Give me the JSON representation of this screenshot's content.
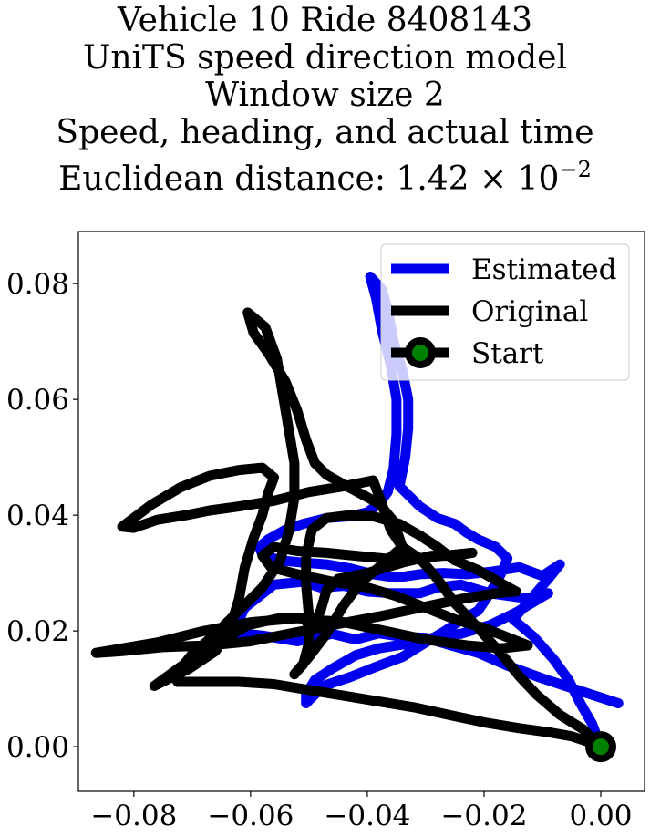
{
  "chart_data": {
    "type": "line",
    "title_lines": [
      "Vehicle 10 Ride 8408143",
      "UniTS speed direction model",
      "Window size 2",
      "Speed, heading, and actual time"
    ],
    "title_last_prefix": "Euclidean distance: 1.42",
    "title_last_base": "10",
    "title_last_exp": "−2",
    "xlim": [
      -0.0895,
      0.0075
    ],
    "ylim": [
      -0.0077,
      0.089
    ],
    "xticks": [
      -0.08,
      -0.06,
      -0.04,
      -0.02,
      0.0
    ],
    "xtick_labels": [
      "−0.08",
      "−0.06",
      "−0.04",
      "−0.02",
      "0.00"
    ],
    "yticks": [
      0.0,
      0.02,
      0.04,
      0.06,
      0.08
    ],
    "ytick_labels": [
      "0.00",
      "0.02",
      "0.04",
      "0.06",
      "0.08"
    ],
    "grid": false,
    "legend_position": "top-right",
    "series": [
      {
        "name": "Estimated",
        "color": "#0000ee",
        "points": [
          [
            0.003,
            0.0075
          ],
          [
            -0.004,
            0.0098
          ],
          [
            -0.01,
            0.0118
          ],
          [
            -0.016,
            0.014
          ],
          [
            -0.021,
            0.0162
          ],
          [
            -0.026,
            0.0176
          ],
          [
            -0.03,
            0.0188
          ],
          [
            -0.034,
            0.019
          ],
          [
            -0.038,
            0.0196
          ],
          [
            -0.042,
            0.0185
          ],
          [
            -0.046,
            0.0195
          ],
          [
            -0.052,
            0.0182
          ],
          [
            -0.058,
            0.0192
          ],
          [
            -0.063,
            0.0197
          ],
          [
            -0.061,
            0.024
          ],
          [
            -0.056,
            0.028
          ],
          [
            -0.051,
            0.0285
          ],
          [
            -0.048,
            0.0275
          ],
          [
            -0.044,
            0.0278
          ],
          [
            -0.04,
            0.0268
          ],
          [
            -0.036,
            0.0265
          ],
          [
            -0.031,
            0.0265
          ],
          [
            -0.028,
            0.0275
          ],
          [
            -0.024,
            0.028
          ],
          [
            -0.019,
            0.0265
          ],
          [
            -0.014,
            0.0258
          ],
          [
            -0.011,
            0.0255
          ],
          [
            -0.009,
            0.0265
          ],
          [
            -0.0145,
            0.0232
          ],
          [
            -0.019,
            0.021
          ],
          [
            -0.024,
            0.0195
          ],
          [
            -0.028,
            0.019
          ],
          [
            -0.033,
            0.0178
          ],
          [
            -0.038,
            0.017
          ],
          [
            -0.042,
            0.0158
          ],
          [
            -0.046,
            0.0135
          ],
          [
            -0.049,
            0.0115
          ],
          [
            -0.0505,
            0.009
          ],
          [
            -0.0505,
            0.0075
          ],
          [
            -0.0475,
            0.0105
          ],
          [
            -0.043,
            0.012
          ],
          [
            -0.038,
            0.014
          ],
          [
            -0.034,
            0.0155
          ],
          [
            -0.03,
            0.018
          ],
          [
            -0.027,
            0.0198
          ],
          [
            -0.024,
            0.0218
          ],
          [
            -0.021,
            0.0235
          ],
          [
            -0.019,
            0.0265
          ],
          [
            -0.017,
            0.03
          ],
          [
            -0.016,
            0.0325
          ],
          [
            -0.018,
            0.0345
          ],
          [
            -0.021,
            0.0358
          ],
          [
            -0.023,
            0.037
          ],
          [
            -0.025,
            0.0385
          ],
          [
            -0.028,
            0.0395
          ],
          [
            -0.031,
            0.0415
          ],
          [
            -0.033,
            0.0435
          ],
          [
            -0.0345,
            0.045
          ],
          [
            -0.0335,
            0.05
          ],
          [
            -0.033,
            0.055
          ],
          [
            -0.033,
            0.06
          ],
          [
            -0.034,
            0.065
          ],
          [
            -0.0355,
            0.07
          ],
          [
            -0.0365,
            0.0755
          ],
          [
            -0.0375,
            0.079
          ],
          [
            -0.0395,
            0.0812
          ],
          [
            -0.0385,
            0.0775
          ],
          [
            -0.0375,
            0.072
          ],
          [
            -0.036,
            0.066
          ],
          [
            -0.035,
            0.06
          ],
          [
            -0.035,
            0.054
          ],
          [
            -0.0355,
            0.048
          ],
          [
            -0.0365,
            0.044
          ],
          [
            -0.038,
            0.042
          ],
          [
            -0.04,
            0.0405
          ],
          [
            -0.043,
            0.0398
          ],
          [
            -0.047,
            0.0395
          ],
          [
            -0.051,
            0.0385
          ],
          [
            -0.054,
            0.0375
          ],
          [
            -0.057,
            0.0358
          ],
          [
            -0.0585,
            0.0345
          ],
          [
            -0.058,
            0.0332
          ],
          [
            -0.055,
            0.0322
          ],
          [
            -0.051,
            0.0318
          ],
          [
            -0.047,
            0.0315
          ],
          [
            -0.043,
            0.0308
          ],
          [
            -0.039,
            0.0298
          ],
          [
            -0.035,
            0.0292
          ],
          [
            -0.031,
            0.0298
          ],
          [
            -0.027,
            0.03
          ],
          [
            -0.023,
            0.0298
          ],
          [
            -0.019,
            0.0302
          ],
          [
            -0.014,
            0.031
          ],
          [
            -0.01,
            0.0295
          ],
          [
            -0.007,
            0.0315
          ],
          [
            -0.009,
            0.029
          ],
          [
            -0.012,
            0.0255
          ],
          [
            -0.015,
            0.022
          ],
          [
            -0.0115,
            0.019
          ],
          [
            -0.008,
            0.015
          ],
          [
            -0.0055,
            0.0115
          ],
          [
            -0.0035,
            0.0075
          ],
          [
            -0.0015,
            0.004
          ],
          [
            0.0,
            0.0
          ]
        ]
      },
      {
        "name": "Original",
        "color": "#000000",
        "points": [
          [
            0.0,
            0.0
          ],
          [
            -0.003,
            0.003
          ],
          [
            -0.007,
            0.0055
          ],
          [
            -0.011,
            0.009
          ],
          [
            -0.014,
            0.0122
          ],
          [
            -0.017,
            0.016
          ],
          [
            -0.021,
            0.0205
          ],
          [
            -0.025,
            0.0248
          ],
          [
            -0.028,
            0.029
          ],
          [
            -0.031,
            0.0325
          ],
          [
            -0.034,
            0.0345
          ],
          [
            -0.036,
            0.0375
          ],
          [
            -0.0375,
            0.042
          ],
          [
            -0.039,
            0.046
          ],
          [
            -0.044,
            0.045
          ],
          [
            -0.05,
            0.044
          ],
          [
            -0.056,
            0.0425
          ],
          [
            -0.062,
            0.0415
          ],
          [
            -0.067,
            0.0408
          ],
          [
            -0.071,
            0.04
          ],
          [
            -0.076,
            0.0392
          ],
          [
            -0.08,
            0.0378
          ],
          [
            -0.082,
            0.038
          ],
          [
            -0.077,
            0.0418
          ],
          [
            -0.072,
            0.0448
          ],
          [
            -0.067,
            0.0468
          ],
          [
            -0.062,
            0.0478
          ],
          [
            -0.058,
            0.0482
          ],
          [
            -0.056,
            0.0465
          ],
          [
            -0.057,
            0.0438
          ],
          [
            -0.058,
            0.04
          ],
          [
            -0.0595,
            0.036
          ],
          [
            -0.061,
            0.031
          ],
          [
            -0.062,
            0.0255
          ],
          [
            -0.0635,
            0.0205
          ],
          [
            -0.066,
            0.0165
          ],
          [
            -0.0705,
            0.0135
          ],
          [
            -0.0765,
            0.0105
          ],
          [
            -0.072,
            0.0138
          ],
          [
            -0.0665,
            0.0175
          ],
          [
            -0.0605,
            0.021
          ],
          [
            -0.055,
            0.0222
          ],
          [
            -0.051,
            0.0222
          ],
          [
            -0.0495,
            0.0205
          ],
          [
            -0.048,
            0.0235
          ],
          [
            -0.047,
            0.027
          ],
          [
            -0.045,
            0.029
          ],
          [
            -0.04,
            0.03
          ],
          [
            -0.034,
            0.0318
          ],
          [
            -0.029,
            0.033
          ],
          [
            -0.025,
            0.033
          ],
          [
            -0.022,
            0.0335
          ],
          [
            -0.027,
            0.033
          ],
          [
            -0.032,
            0.0325
          ],
          [
            -0.037,
            0.0325
          ],
          [
            -0.042,
            0.033
          ],
          [
            -0.047,
            0.0335
          ],
          [
            -0.052,
            0.0338
          ],
          [
            -0.056,
            0.0345
          ],
          [
            -0.058,
            0.033
          ],
          [
            -0.0565,
            0.031
          ],
          [
            -0.052,
            0.0298
          ],
          [
            -0.046,
            0.0285
          ],
          [
            -0.04,
            0.0275
          ],
          [
            -0.035,
            0.026
          ],
          [
            -0.03,
            0.024
          ],
          [
            -0.025,
            0.022
          ],
          [
            -0.02,
            0.0205
          ],
          [
            -0.015,
            0.0185
          ],
          [
            -0.0125,
            0.0175
          ],
          [
            -0.017,
            0.017
          ],
          [
            -0.023,
            0.0175
          ],
          [
            -0.03,
            0.0185
          ],
          [
            -0.037,
            0.02
          ],
          [
            -0.044,
            0.0215
          ],
          [
            -0.052,
            0.0222
          ],
          [
            -0.06,
            0.0215
          ],
          [
            -0.068,
            0.02
          ],
          [
            -0.076,
            0.018
          ],
          [
            -0.083,
            0.0168
          ],
          [
            -0.0865,
            0.0162
          ],
          [
            -0.082,
            0.0165
          ],
          [
            -0.075,
            0.0172
          ],
          [
            -0.067,
            0.0175
          ],
          [
            -0.06,
            0.0182
          ],
          [
            -0.052,
            0.0198
          ],
          [
            -0.045,
            0.0212
          ],
          [
            -0.038,
            0.0225
          ],
          [
            -0.031,
            0.024
          ],
          [
            -0.024,
            0.0255
          ],
          [
            -0.018,
            0.0265
          ],
          [
            -0.0145,
            0.0268
          ],
          [
            -0.017,
            0.0282
          ],
          [
            -0.021,
            0.0305
          ],
          [
            -0.025,
            0.0322
          ],
          [
            -0.028,
            0.0345
          ],
          [
            -0.031,
            0.0365
          ],
          [
            -0.0345,
            0.0385
          ],
          [
            -0.039,
            0.0398
          ],
          [
            -0.043,
            0.04
          ],
          [
            -0.047,
            0.0395
          ],
          [
            -0.0495,
            0.0375
          ],
          [
            -0.0505,
            0.033
          ],
          [
            -0.0505,
            0.028
          ],
          [
            -0.05,
            0.0225
          ],
          [
            -0.05,
            0.018
          ],
          [
            -0.051,
            0.0142
          ],
          [
            -0.0525,
            0.0125
          ],
          [
            -0.05,
            0.0155
          ],
          [
            -0.047,
            0.0195
          ],
          [
            -0.044,
            0.0245
          ],
          [
            -0.041,
            0.0285
          ],
          [
            -0.038,
            0.031
          ],
          [
            -0.034,
            0.0345
          ],
          [
            -0.0355,
            0.039
          ],
          [
            -0.038,
            0.042
          ],
          [
            -0.0435,
            0.045
          ],
          [
            -0.047,
            0.047
          ],
          [
            -0.049,
            0.049
          ],
          [
            -0.0505,
            0.053
          ],
          [
            -0.052,
            0.058
          ],
          [
            -0.054,
            0.063
          ],
          [
            -0.057,
            0.068
          ],
          [
            -0.0595,
            0.0715
          ],
          [
            -0.0605,
            0.075
          ],
          [
            -0.0575,
            0.0725
          ],
          [
            -0.0555,
            0.067
          ],
          [
            -0.0545,
            0.061
          ],
          [
            -0.0535,
            0.055
          ],
          [
            -0.0525,
            0.049
          ],
          [
            -0.0525,
            0.043
          ],
          [
            -0.0535,
            0.037
          ],
          [
            -0.055,
            0.032
          ],
          [
            -0.058,
            0.0275
          ],
          [
            -0.062,
            0.0235
          ],
          [
            -0.066,
            0.0195
          ],
          [
            -0.07,
            0.016
          ],
          [
            -0.073,
            0.0122
          ],
          [
            -0.0725,
            0.0112
          ],
          [
            -0.068,
            0.0112
          ],
          [
            -0.062,
            0.0112
          ],
          [
            -0.056,
            0.0108
          ],
          [
            -0.05,
            0.0098
          ],
          [
            -0.044,
            0.0088
          ],
          [
            -0.038,
            0.0078
          ],
          [
            -0.032,
            0.0068
          ],
          [
            -0.026,
            0.0055
          ],
          [
            -0.02,
            0.0042
          ],
          [
            -0.014,
            0.0032
          ],
          [
            -0.009,
            0.0025
          ],
          [
            -0.005,
            0.0018
          ],
          [
            -0.002,
            0.0008
          ],
          [
            0.0,
            0.0
          ]
        ]
      }
    ],
    "start_point": {
      "name": "Start",
      "x": 0.0,
      "y": 0.0,
      "outer_color": "#000000",
      "inner_color": "#008000"
    }
  }
}
